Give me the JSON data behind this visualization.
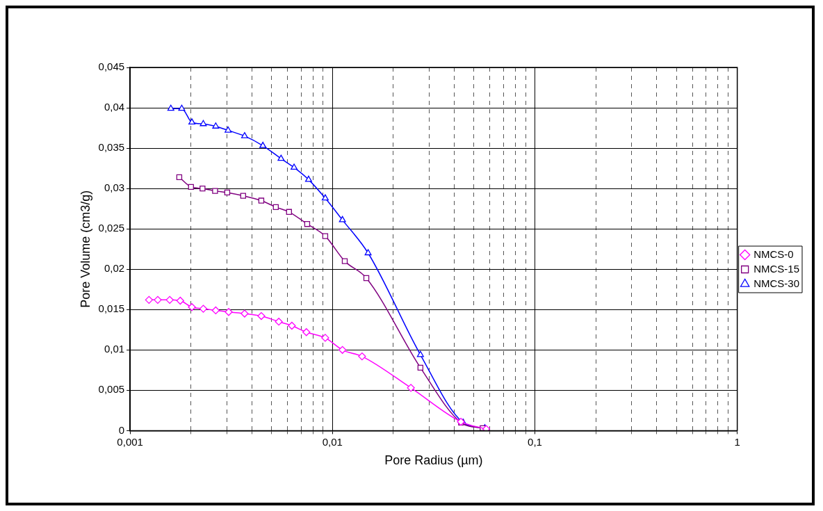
{
  "chart_data": {
    "type": "line",
    "xlabel": "Pore Radius (µm)",
    "ylabel": "Pore Volume (cm3/g)",
    "xlim": [
      0.001,
      1
    ],
    "log": "x",
    "xticks": [
      {
        "value": 0.001,
        "label": "0,001"
      },
      {
        "value": 0.002,
        "label": null
      },
      {
        "value": 0.003,
        "label": null
      },
      {
        "value": 0.004,
        "label": null
      },
      {
        "value": 0.005,
        "label": null
      },
      {
        "value": 0.006,
        "label": null
      },
      {
        "value": 0.007,
        "label": null
      },
      {
        "value": 0.008,
        "label": null
      },
      {
        "value": 0.009,
        "label": null
      },
      {
        "value": 0.01,
        "label": "0,01"
      },
      {
        "value": 0.02,
        "label": null
      },
      {
        "value": 0.03,
        "label": null
      },
      {
        "value": 0.04,
        "label": null
      },
      {
        "value": 0.05,
        "label": null
      },
      {
        "value": 0.06,
        "label": null
      },
      {
        "value": 0.07,
        "label": null
      },
      {
        "value": 0.08,
        "label": null
      },
      {
        "value": 0.09,
        "label": null
      },
      {
        "value": 0.1,
        "label": "0,1"
      },
      {
        "value": 0.2,
        "label": null
      },
      {
        "value": 0.3,
        "label": null
      },
      {
        "value": 0.4,
        "label": null
      },
      {
        "value": 0.5,
        "label": null
      },
      {
        "value": 0.6,
        "label": null
      },
      {
        "value": 0.7,
        "label": null
      },
      {
        "value": 0.8,
        "label": null
      },
      {
        "value": 0.9,
        "label": null
      },
      {
        "value": 1,
        "label": "1"
      }
    ],
    "ylim": [
      0,
      0.045
    ],
    "yticks": [
      0,
      {
        "value": 0.005,
        "label": "0,005"
      },
      {
        "value": 0.01,
        "label": "0,01"
      },
      {
        "value": 0.015,
        "label": "0,015"
      },
      {
        "value": 0.02,
        "label": "0,02"
      },
      {
        "value": 0.025,
        "label": "0,025"
      },
      {
        "value": 0.03,
        "label": "0,03"
      },
      {
        "value": 0.035,
        "label": "0,035"
      },
      {
        "value": 0.04,
        "label": "0,04"
      },
      {
        "value": 0.045,
        "label": "0,045"
      }
    ],
    "grid": true,
    "legend": "right",
    "series": [
      {
        "name": "NMCS-0",
        "color": "#ff00ff",
        "marker": "diamond",
        "x": [
          0.00124,
          0.00137,
          0.00157,
          0.00177,
          0.00202,
          0.0023,
          0.00265,
          0.00307,
          0.00368,
          0.00445,
          0.00543,
          0.0063,
          0.00743,
          0.00921,
          0.0112,
          0.014,
          0.0244,
          0.0431,
          0.0575
        ],
        "values": [
          0.0162,
          0.0162,
          0.0162,
          0.0161,
          0.0153,
          0.0151,
          0.0149,
          0.0147,
          0.0145,
          0.0142,
          0.0135,
          0.013,
          0.0122,
          0.0115,
          0.01,
          0.0092,
          0.0053,
          0.0011,
          0.0002
        ]
      },
      {
        "name": "NMCS-15",
        "color": "#800080",
        "marker": "square",
        "x": [
          0.00175,
          0.002,
          0.00228,
          0.00263,
          0.00302,
          0.00362,
          0.00445,
          0.00525,
          0.0061,
          0.0075,
          0.00921,
          0.0115,
          0.0147,
          0.0272,
          0.0432,
          0.0552
        ],
        "values": [
          0.0314,
          0.0302,
          0.03,
          0.0297,
          0.0295,
          0.0291,
          0.0285,
          0.0277,
          0.0271,
          0.0256,
          0.0241,
          0.021,
          0.0189,
          0.0078,
          0.001,
          0.0003
        ]
      },
      {
        "name": "NMCS-30",
        "color": "#0000ff",
        "marker": "triangle",
        "x": [
          0.00159,
          0.0018,
          0.00202,
          0.0023,
          0.00265,
          0.00305,
          0.00368,
          0.00453,
          0.00557,
          0.00646,
          0.00762,
          0.00921,
          0.0112,
          0.015,
          0.0272,
          0.0442,
          0.0566
        ],
        "values": [
          0.0399,
          0.0399,
          0.0382,
          0.038,
          0.0377,
          0.0372,
          0.0365,
          0.0353,
          0.0337,
          0.0326,
          0.0311,
          0.0288,
          0.0261,
          0.022,
          0.0094,
          0.001,
          0.0003
        ]
      }
    ]
  }
}
